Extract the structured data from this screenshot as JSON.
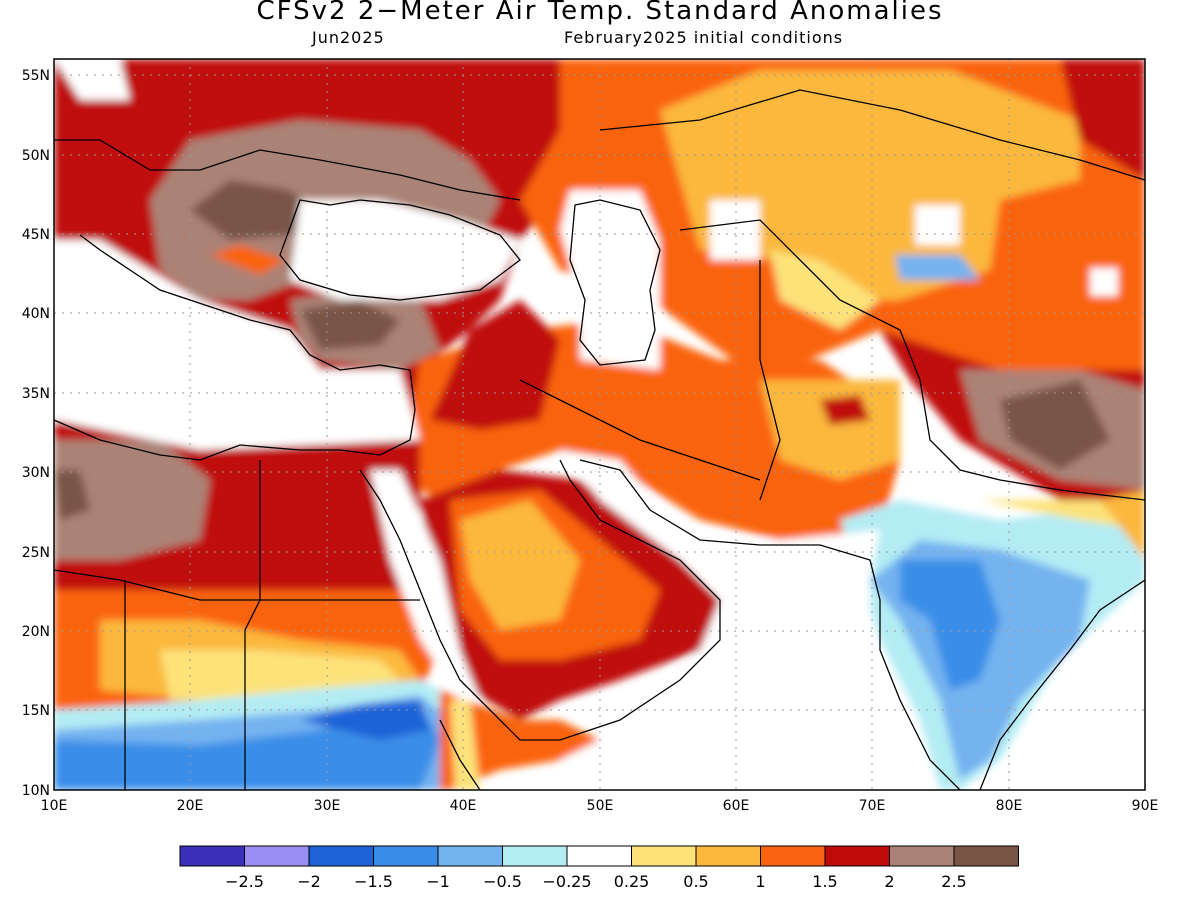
{
  "title": "CFSv2 2−Meter Air Temp. Standard Anomalies",
  "subtitle_left": "Jun2025",
  "subtitle_right": "February2025 initial conditions",
  "map": {
    "lon_range": [
      10,
      90
    ],
    "lat_range": [
      10,
      56
    ],
    "lat_ticks": [
      "55N",
      "50N",
      "45N",
      "40N",
      "35N",
      "30N",
      "25N",
      "20N",
      "15N",
      "10N"
    ],
    "lon_ticks": [
      "10E",
      "20E",
      "30E",
      "40E",
      "50E",
      "60E",
      "70E",
      "80E",
      "90E"
    ]
  },
  "colorbar": {
    "colors": [
      "#3a2fb8",
      "#9a8ef5",
      "#1f63d8",
      "#3b8ee8",
      "#74b2f0",
      "#b4ecf4",
      "#ffffff",
      "#fde27a",
      "#fbb83c",
      "#fa6410",
      "#c00a0a",
      "#ab8276",
      "#7a5546"
    ],
    "labels": [
      "−2.5",
      "−2",
      "−1.5",
      "−1",
      "−0.5",
      "−0.25",
      "0.25",
      "0.5",
      "1",
      "1.5",
      "2",
      "2.5"
    ]
  }
}
